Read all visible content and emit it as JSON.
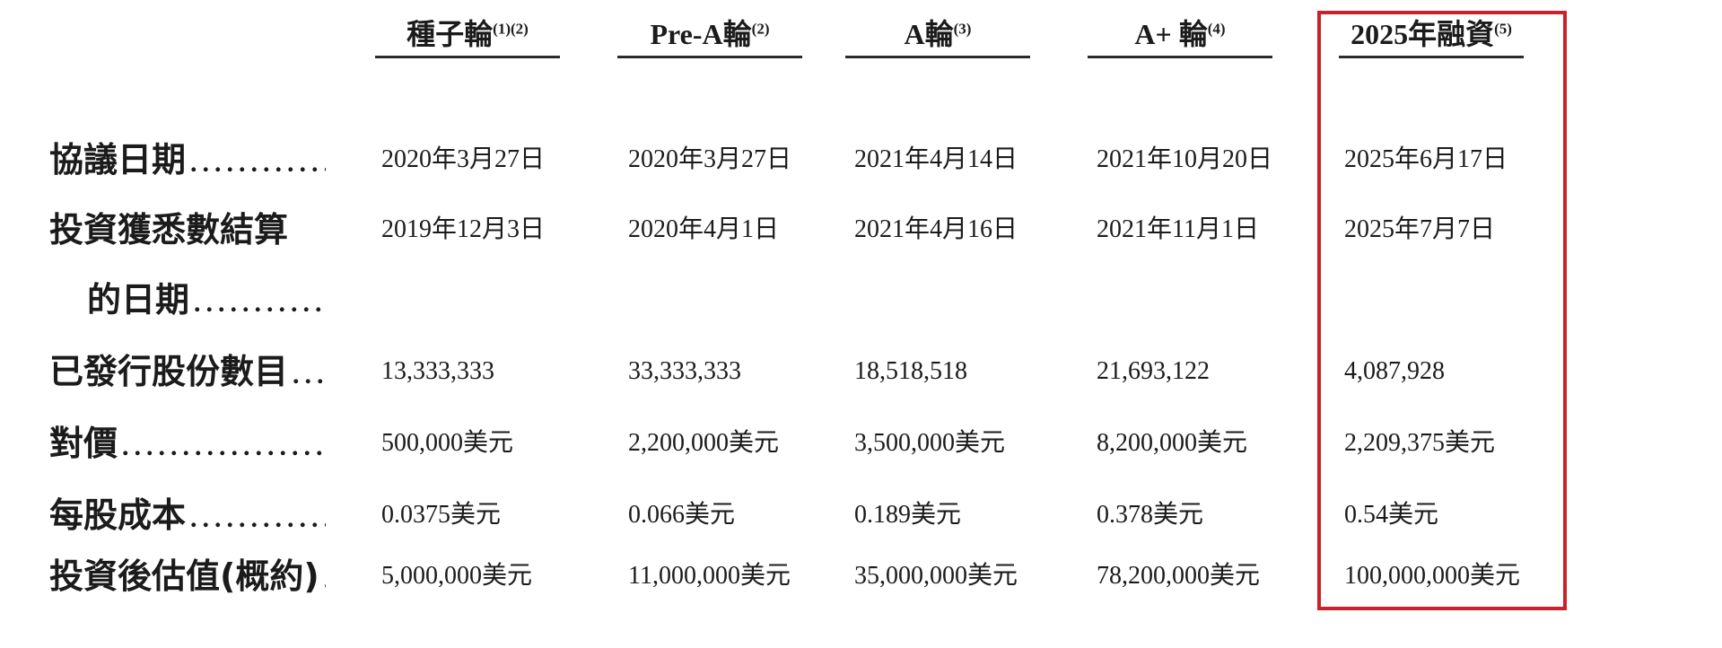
{
  "colors": {
    "highlight_border": "#c9222a",
    "rule_line": "#2b2b2b",
    "text": "#1b1b1b",
    "background": "#ffffff"
  },
  "table": {
    "columns": [
      {
        "label": "種子輪",
        "sup": "(1)(2)"
      },
      {
        "label": "Pre-A輪",
        "sup": "(2)"
      },
      {
        "label": "A輪",
        "sup": "(3)"
      },
      {
        "label": "A+ 輪",
        "sup": "(4)"
      },
      {
        "label": "2025年融資",
        "sup": "(5)",
        "highlighted": true
      }
    ],
    "rows": [
      {
        "label": "協議日期",
        "dots": "..............",
        "values": [
          "2020年3月27日",
          "2020年3月27日",
          "2021年4月14日",
          "2021年10月20日",
          "2025年6月17日"
        ]
      },
      {
        "label": "投資獲悉數結算",
        "dots": "",
        "values": [
          "2019年12月3日",
          "2020年4月1日",
          "2021年4月16日",
          "2021年11月1日",
          "2025年7月7日"
        ]
      },
      {
        "label": "的日期",
        "dots": "..............",
        "values": [
          "",
          "",
          "",
          "",
          ""
        ]
      },
      {
        "label": "已發行股份數目",
        "dots": "........",
        "values": [
          "13,333,333",
          "33,333,333",
          "18,518,518",
          "21,693,122",
          "4,087,928"
        ]
      },
      {
        "label": "對價",
        "dots": ".................",
        "values": [
          "500,000美元",
          "2,200,000美元",
          "3,500,000美元",
          "8,200,000美元",
          "2,209,375美元"
        ]
      },
      {
        "label": "每股成本",
        "dots": "..............",
        "values": [
          "0.0375美元",
          "0.066美元",
          "0.189美元",
          "0.378美元",
          "0.54美元"
        ]
      },
      {
        "label": "投資後估值(概約)",
        "dots": "......",
        "values": [
          "5,000,000美元",
          "11,000,000美元",
          "35,000,000美元",
          "78,200,000美元",
          "100,000,000美元"
        ]
      }
    ]
  }
}
